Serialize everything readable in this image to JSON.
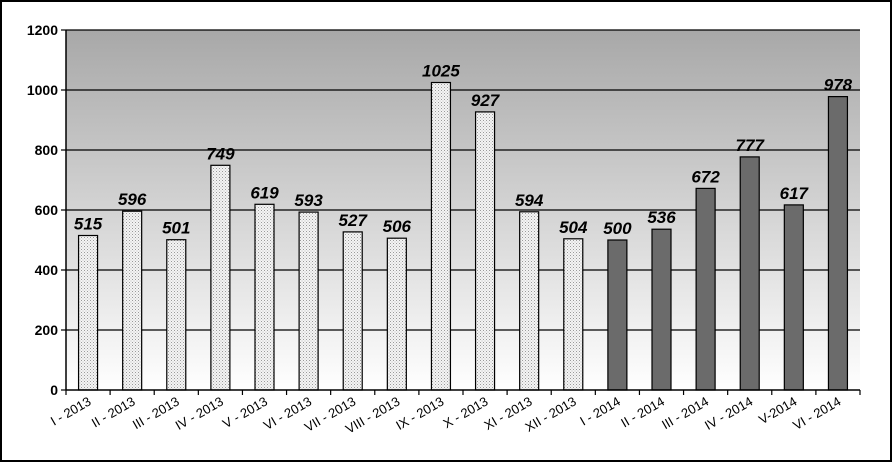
{
  "chart_data": {
    "type": "bar",
    "categories": [
      "I - 2013",
      "II - 2013",
      "III - 2013",
      "IV - 2013",
      "V - 2013",
      "VI - 2013",
      "VII - 2013",
      "VIII - 2013",
      "IX - 2013",
      "X - 2013",
      "XI - 2013",
      "XII - 2013",
      "I - 2014",
      "II - 2014",
      "III - 2014",
      "IV - 2014",
      "V-2014",
      "VI - 2014"
    ],
    "values": [
      515,
      596,
      501,
      749,
      619,
      593,
      527,
      506,
      1025,
      927,
      594,
      504,
      500,
      536,
      672,
      777,
      617,
      978
    ],
    "data_labels": [
      "515",
      "596",
      "501",
      "749",
      "619",
      "593",
      "527",
      "506",
      "1025",
      "927",
      "594",
      "504",
      "500",
      "536",
      "672",
      "777",
      "617",
      "978"
    ],
    "bar_style": [
      "dotted",
      "dotted",
      "dotted",
      "dotted",
      "dotted",
      "dotted",
      "dotted",
      "dotted",
      "dotted",
      "dotted",
      "dotted",
      "dotted",
      "solid",
      "solid",
      "solid",
      "solid",
      "solid",
      "solid"
    ],
    "colors": {
      "dotted_fill": "#f2f2f2",
      "solid_fill": "#6b6b6b",
      "bar_stroke": "#000000",
      "plot_top": "#a8a8a8",
      "plot_bottom": "#ffffff",
      "grid": "#000000"
    },
    "yticks": [
      "0",
      "200",
      "400",
      "600",
      "800",
      "1000",
      "1200"
    ],
    "ylim": [
      0,
      1200
    ],
    "ystep": 200,
    "grid": true,
    "legend": "none",
    "title": "",
    "xlabel": "",
    "ylabel": ""
  }
}
